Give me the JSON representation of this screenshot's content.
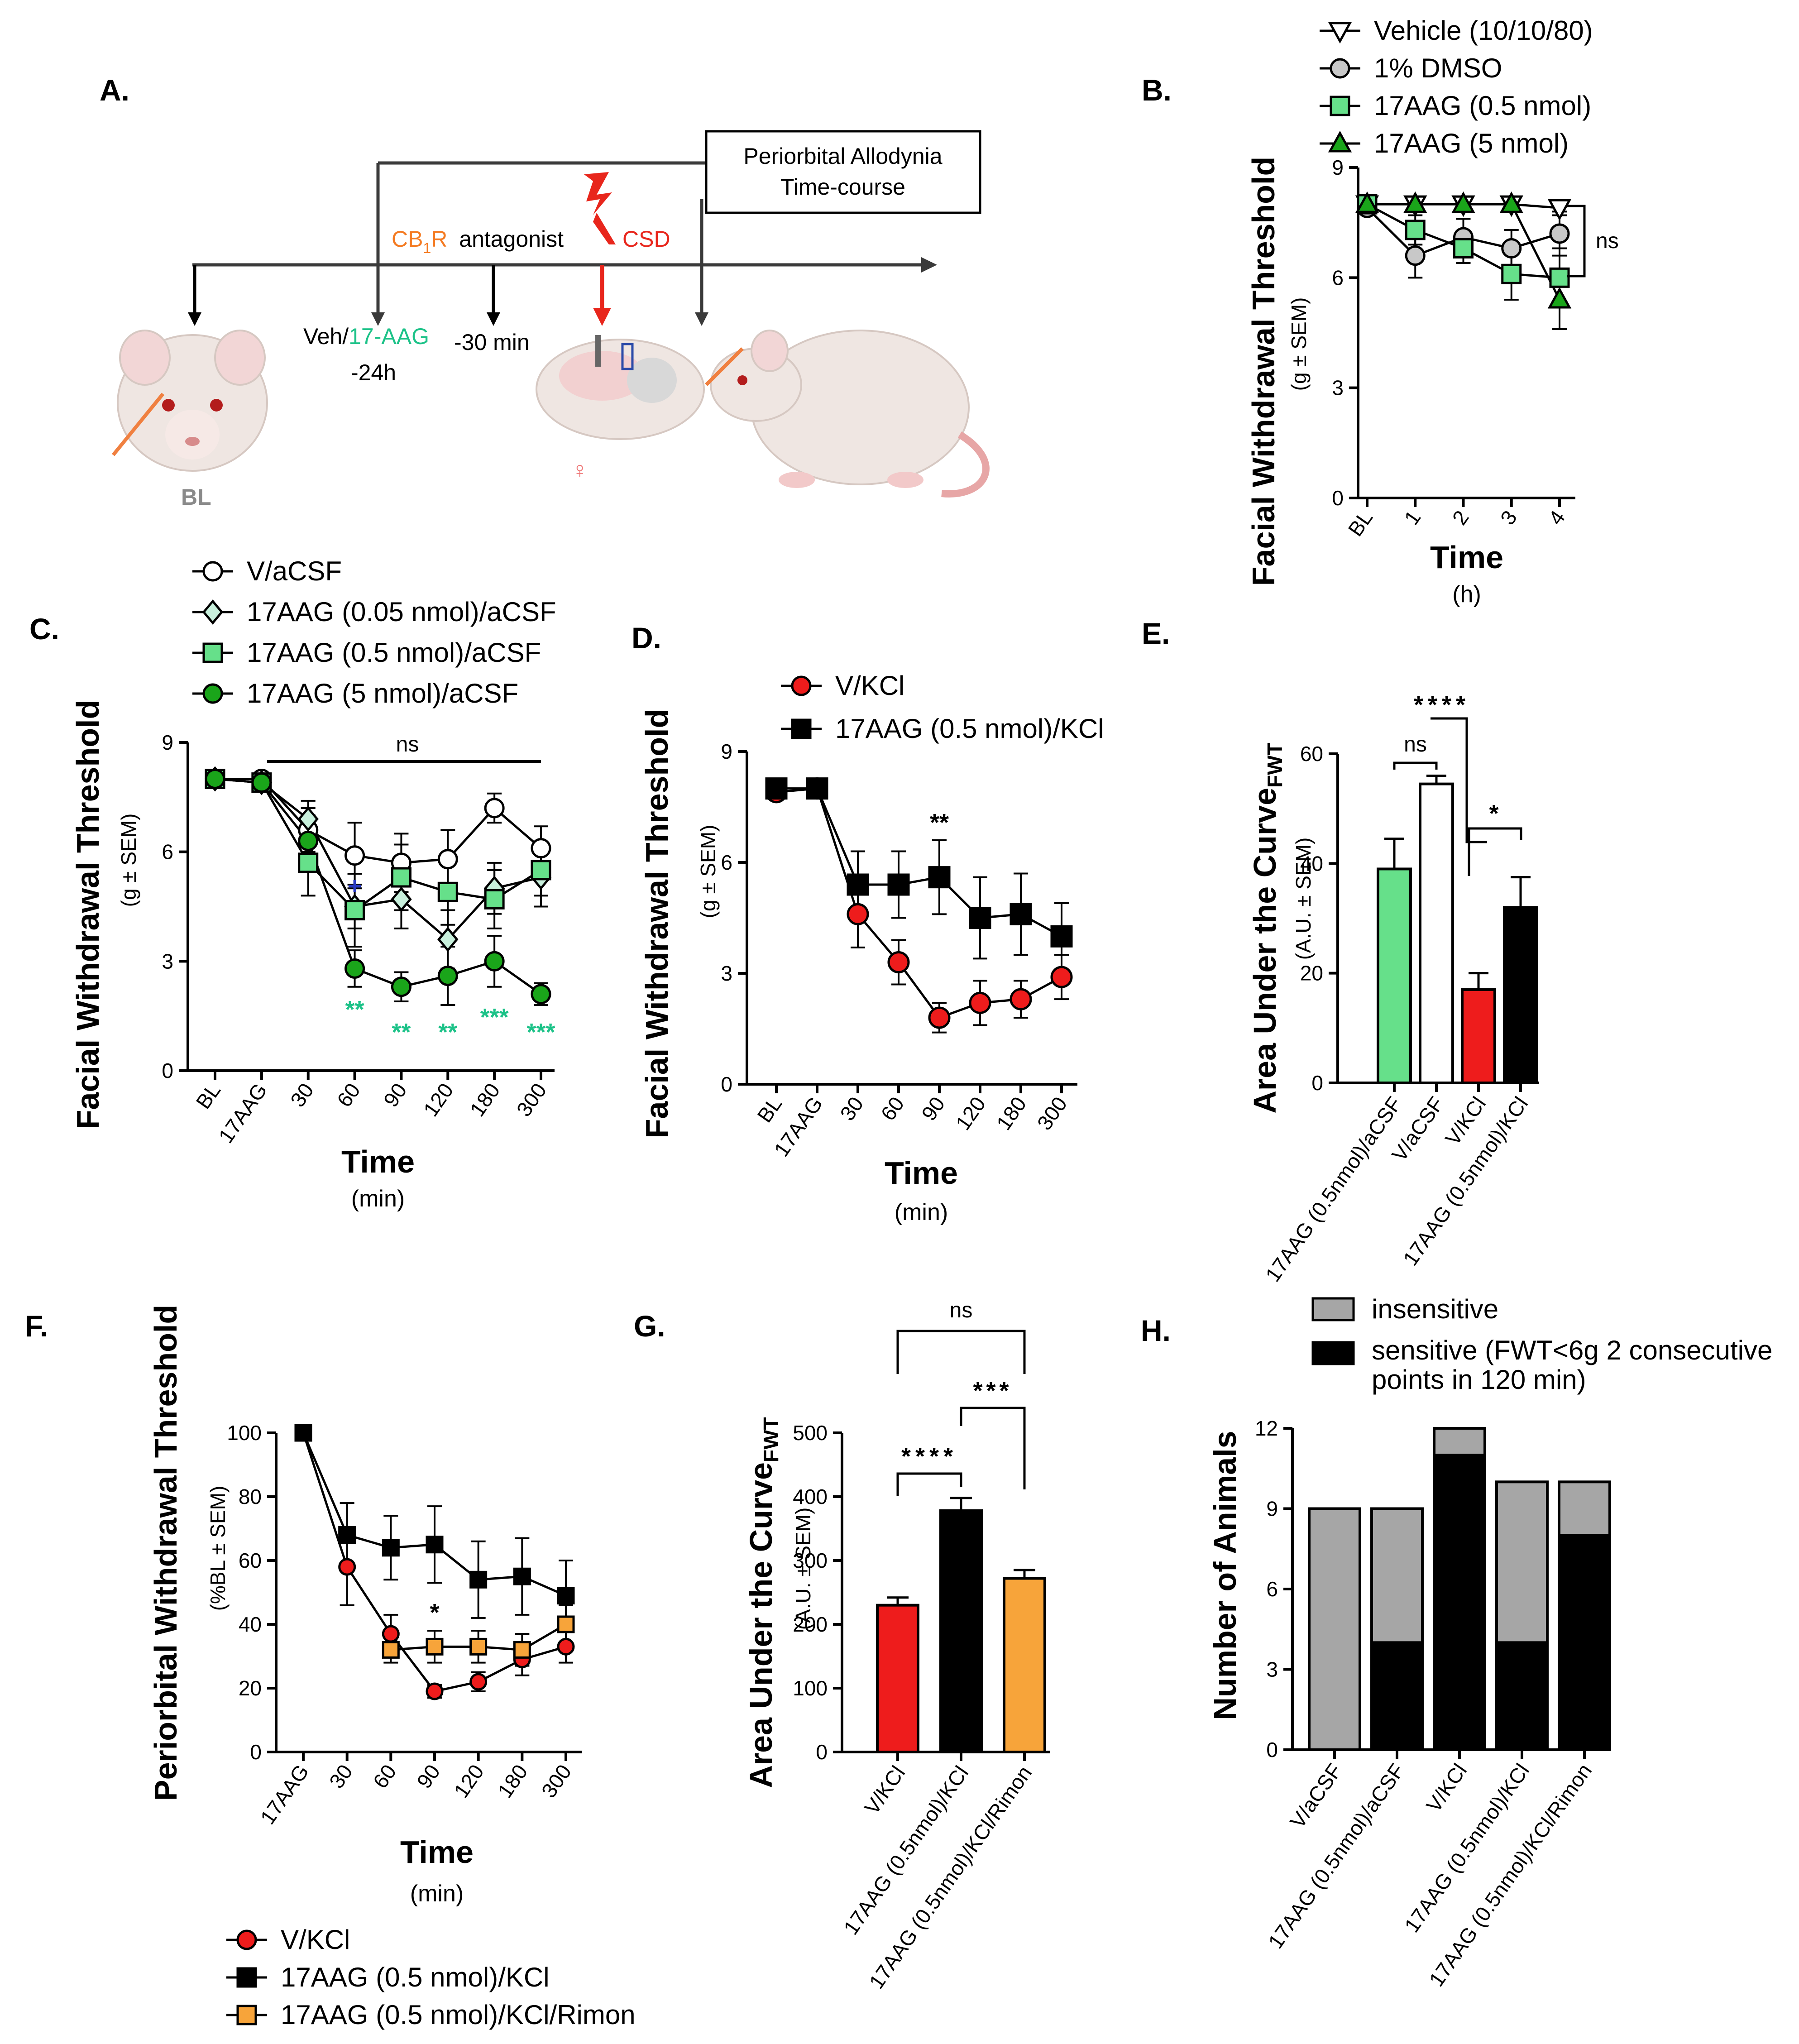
{
  "colors": {
    "green_light": "#66e08a",
    "green_dark": "#1aa51a",
    "red": "#ee1c1c",
    "orange": "#f7a43a",
    "grey": "#a6a6a6",
    "black": "#000000",
    "orange_text": "#f47a21",
    "green_text": "#1cc288",
    "red_text": "#e8261c"
  },
  "schematic": {
    "panel": "A.",
    "box_line1": "Periorbital Allodynia",
    "box_line2": "Time-course",
    "cb1r_prefix": "CB",
    "cb1r_sub": "1",
    "cb1r_r": "R",
    "antagonist": "antagonist",
    "csd": "CSD",
    "minus30": "-30 min",
    "veh": "Veh/",
    "drug": "17-AAG",
    "minus24": "-24h",
    "bl": "BL",
    "female": "♀"
  },
  "chart_data": [
    {
      "id": "B",
      "type": "line",
      "panel": "B.",
      "ylabel": "Facial Withdrawal Threshold",
      "ylabel_sub": "(g ± SEM)",
      "xlabel": "Time",
      "xlabel_sub": "(h)",
      "categories": [
        "BL",
        "1",
        "2",
        "3",
        "4"
      ],
      "yticks": [
        "0",
        "3",
        "6",
        "9"
      ],
      "ylim": [
        0,
        9
      ],
      "annotation": "ns",
      "series": [
        {
          "name": "Vehicle (10/10/80)",
          "marker": "tri-down",
          "color": "#ffffff",
          "values": [
            8.0,
            8.0,
            8.0,
            8.0,
            7.9
          ],
          "err": [
            0.1,
            0.1,
            0.1,
            0.1,
            0.2
          ]
        },
        {
          "name": "1% DMSO",
          "marker": "circle",
          "color": "#c8c8c8",
          "values": [
            7.9,
            6.6,
            7.1,
            6.8,
            7.2
          ],
          "err": [
            0.1,
            0.6,
            0.5,
            0.5,
            0.6
          ]
        },
        {
          "name": "17AAG (0.5 nmol)",
          "marker": "square",
          "color": "#66e08a",
          "values": [
            8.0,
            7.3,
            6.8,
            6.1,
            6.0
          ],
          "err": [
            0.1,
            0.4,
            0.4,
            0.7,
            0.8
          ]
        },
        {
          "name": "17AAG (5 nmol)",
          "marker": "tri-up",
          "color": "#1aa51a",
          "values": [
            8.0,
            8.0,
            8.0,
            8.0,
            5.4
          ],
          "err": [
            0.1,
            0.1,
            0.1,
            0.1,
            0.8
          ]
        }
      ]
    },
    {
      "id": "C",
      "type": "line",
      "panel": "C.",
      "ylabel": "Facial Withdrawal Threshold",
      "ylabel_sub": "(g ± SEM)",
      "xlabel": "Time",
      "xlabel_sub": "(min)",
      "categories": [
        "BL",
        "17AAG",
        "30",
        "60",
        "90",
        "120",
        "180",
        "300"
      ],
      "yticks": [
        "0",
        "3",
        "6",
        "9"
      ],
      "ylim": [
        0,
        9
      ],
      "annotation": "ns",
      "stars": [
        "**",
        "**",
        "**",
        "***",
        "***"
      ],
      "dagger": "+",
      "series": [
        {
          "name": "V/aCSF",
          "marker": "circle",
          "color": "#ffffff",
          "values": [
            8.0,
            8.0,
            6.6,
            5.9,
            5.7,
            5.8,
            7.2,
            6.1
          ],
          "err": [
            0.1,
            0.1,
            0.6,
            0.9,
            0.8,
            0.8,
            0.4,
            0.6
          ]
        },
        {
          "name": "17AAG (0.05 nmol)/aCSF",
          "marker": "diamond",
          "color": "#c8f0dc",
          "values": [
            8.0,
            7.9,
            6.9,
            4.5,
            4.7,
            3.6,
            5.0,
            5.3
          ],
          "err": [
            0.1,
            0.1,
            0.5,
            0.6,
            0.8,
            0.8,
            0.7,
            0.8
          ]
        },
        {
          "name": "17AAG (0.5 nmol)/aCSF",
          "marker": "square",
          "color": "#66e08a",
          "values": [
            8.0,
            7.9,
            5.7,
            4.4,
            5.3,
            4.9,
            4.7,
            5.5
          ],
          "err": [
            0.1,
            0.1,
            0.9,
            1.0,
            0.9,
            0.9,
            0.8,
            0.7
          ]
        },
        {
          "name": "17AAG (5 nmol)/aCSF",
          "marker": "circle",
          "color": "#1aa51a",
          "values": [
            8.0,
            7.9,
            6.3,
            2.8,
            2.3,
            2.6,
            3.0,
            2.1
          ],
          "err": [
            0.1,
            0.1,
            0.7,
            0.5,
            0.4,
            0.8,
            0.7,
            0.3
          ]
        }
      ]
    },
    {
      "id": "D",
      "type": "line",
      "panel": "D.",
      "ylabel": "Facial Withdrawal Threshold",
      "ylabel_sub": "(g ± SEM)",
      "xlabel": "Time",
      "xlabel_sub": "(min)",
      "categories": [
        "BL",
        "17AAG",
        "30",
        "60",
        "90",
        "120",
        "180",
        "300"
      ],
      "yticks": [
        "0",
        "3",
        "6",
        "9"
      ],
      "ylim": [
        0,
        9
      ],
      "annotation": "**",
      "series": [
        {
          "name": "V/KCl",
          "marker": "circle",
          "color": "#ee1c1c",
          "values": [
            7.9,
            8.0,
            4.6,
            3.3,
            1.8,
            2.2,
            2.3,
            2.9
          ],
          "err": [
            0.1,
            0.1,
            0.9,
            0.6,
            0.4,
            0.6,
            0.5,
            0.6
          ]
        },
        {
          "name": "17AAG (0.5 nmol)/KCl",
          "marker": "square",
          "color": "#000000",
          "values": [
            8.0,
            8.0,
            5.4,
            5.4,
            5.6,
            4.5,
            4.6,
            4.0
          ],
          "err": [
            0.1,
            0.1,
            0.9,
            0.9,
            1.0,
            1.1,
            1.1,
            0.9
          ]
        }
      ]
    },
    {
      "id": "E",
      "type": "bar",
      "panel": "E.",
      "ylabel": "Area Under the Curve",
      "ylabel_subscript": "FWT",
      "ylabel_sub": "(A.U. ± SEM)",
      "categories": [
        "17AAG (0.5nmol)/aCSF",
        "V/aCSF",
        "V/KCl",
        "17AAG (0.5nmol)/KCl"
      ],
      "values": [
        39,
        54.5,
        17,
        32
      ],
      "err": [
        5.5,
        1.5,
        3,
        5.5
      ],
      "colors": [
        "#66e08a",
        "#ffffff",
        "#ee1c1c",
        "#000000"
      ],
      "yticks": [
        "0",
        "20",
        "40",
        "60"
      ],
      "ylim": [
        0,
        60
      ],
      "annotations": [
        "ns",
        "****",
        "*"
      ]
    },
    {
      "id": "F",
      "type": "line",
      "panel": "F.",
      "ylabel": "Periorbital Withdrawal Threshold",
      "ylabel_sub": "(%BL ± SEM)",
      "xlabel": "Time",
      "xlabel_sub": "(min)",
      "categories": [
        "17AAG",
        "30",
        "60",
        "90",
        "120",
        "180",
        "300"
      ],
      "yticks": [
        "0",
        "20",
        "40",
        "60",
        "80",
        "100"
      ],
      "ylim": [
        0,
        100
      ],
      "annotation": "*",
      "series": [
        {
          "name": "V/KCl",
          "marker": "circle",
          "color": "#ee1c1c",
          "values": [
            100,
            58,
            37,
            19,
            22,
            29,
            33
          ],
          "err": [
            1,
            12,
            6,
            2,
            3,
            5,
            5
          ]
        },
        {
          "name": "17AAG (0.5 nmol)/KCl",
          "marker": "square",
          "color": "#000000",
          "values": [
            100,
            68,
            64,
            65,
            54,
            55,
            49
          ],
          "err": [
            1,
            10,
            10,
            12,
            12,
            12,
            11
          ]
        },
        {
          "name": "17AAG (0.5 nmol)/KCl/Rimon",
          "marker": "square",
          "color": "#f7a43a",
          "values": [
            null,
            null,
            32,
            33,
            33,
            32,
            40
          ],
          "err": [
            0,
            0,
            4,
            5,
            5,
            5,
            6
          ]
        }
      ]
    },
    {
      "id": "G",
      "type": "bar",
      "panel": "G.",
      "ylabel": "Area Under the Curve",
      "ylabel_subscript": "FWT",
      "ylabel_sub": "(A.U. ± SEM)",
      "categories": [
        "V/KCl",
        "17AAG (0.5nmol)/KCl",
        "17AAG (0.5nmol)/KCl/Rimon"
      ],
      "values": [
        230,
        378,
        272
      ],
      "err": [
        12,
        20,
        13
      ],
      "colors": [
        "#ee1c1c",
        "#000000",
        "#f7a43a"
      ],
      "yticks": [
        "0",
        "100",
        "200",
        "300",
        "400",
        "500"
      ],
      "ylim": [
        0,
        500
      ],
      "annotations": [
        "ns",
        "****",
        "***"
      ]
    },
    {
      "id": "H",
      "type": "bar",
      "panel": "H.",
      "ylabel": "Number of Animals",
      "categories": [
        "V/aCSF",
        "17AAG (0.5nmol)/aCSF",
        "V/KCl",
        "17AAG (0.5nmol)/KCl",
        "17AAG (0.5nmol)/KCl/Rimon"
      ],
      "yticks": [
        "0",
        "3",
        "6",
        "9",
        "12"
      ],
      "ylim": [
        0,
        12
      ],
      "series": [
        {
          "name": "sensitive",
          "legend1": "sensitive  (FWT<6g 2 consecutive",
          "legend2": "points in 120 min)",
          "color": "#000000",
          "values": [
            0,
            4,
            11,
            4,
            8
          ]
        },
        {
          "name": "insensitive",
          "legend1": "insensitive",
          "color": "#a6a6a6",
          "values": [
            9,
            5,
            1,
            6,
            2
          ]
        }
      ]
    }
  ]
}
